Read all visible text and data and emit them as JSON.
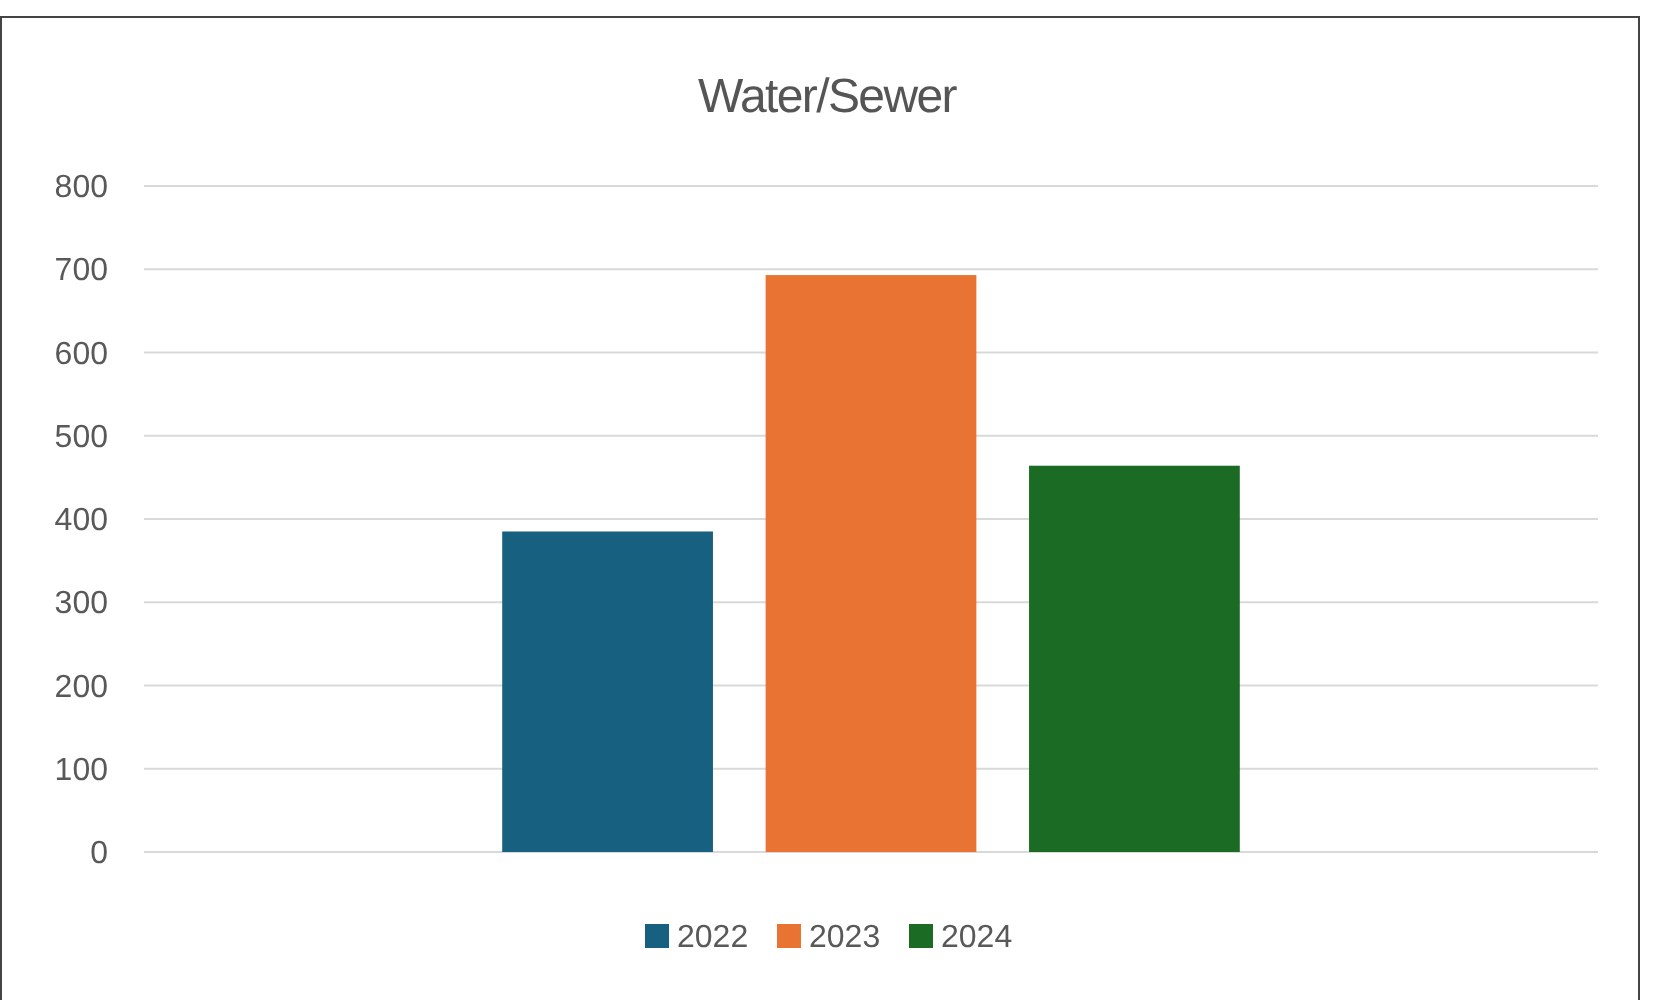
{
  "chart_data": {
    "type": "bar",
    "title": "Water/Sewer",
    "categories": [
      null
    ],
    "series": [
      {
        "name": "2022",
        "color": "#17607f",
        "values": [
          385
        ]
      },
      {
        "name": "2023",
        "color": "#e97333",
        "values": [
          693
        ]
      },
      {
        "name": "2024",
        "color": "#1b6b24",
        "values": [
          464
        ]
      }
    ],
    "ylim": [
      0,
      800
    ],
    "yticks": [
      0,
      100,
      200,
      300,
      400,
      500,
      600,
      700,
      800
    ],
    "grid": "y",
    "legend": "bottom"
  }
}
